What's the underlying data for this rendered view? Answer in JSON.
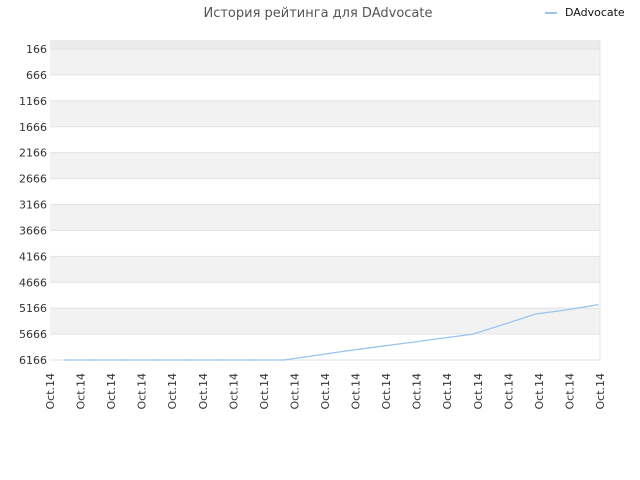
{
  "chart_data": {
    "type": "line",
    "title": "История рейтинга для DAdvocate",
    "xlabel": "",
    "ylabel": "",
    "y_axis_inverted": true,
    "ylim": [
      166,
      6166
    ],
    "yticks": [
      "166",
      "666",
      "1166",
      "1666",
      "2166",
      "2666",
      "3166",
      "3666",
      "4166",
      "4666",
      "5166",
      "5666",
      "6166"
    ],
    "xticks": [
      "Oct.14",
      "Oct.14",
      "Oct.14",
      "Oct.14",
      "Oct.14",
      "Oct.14",
      "Oct.14",
      "Oct.14",
      "Oct.14",
      "Oct.14",
      "Oct.14",
      "Oct.14",
      "Oct.14",
      "Oct.14",
      "Oct.14",
      "Oct.14",
      "Oct.14",
      "Oct.14",
      "Oct.14"
    ],
    "grid": true,
    "legend_position": "top-right",
    "series": [
      {
        "name": "DAdvocate",
        "color": "#99c5ee",
        "values": [
          6166,
          6166,
          6166,
          6166,
          6166,
          6166,
          6166,
          6166,
          6080,
          5990,
          5910,
          5830,
          5750,
          5670,
          5480,
          5280,
          5200,
          5100
        ]
      }
    ]
  }
}
